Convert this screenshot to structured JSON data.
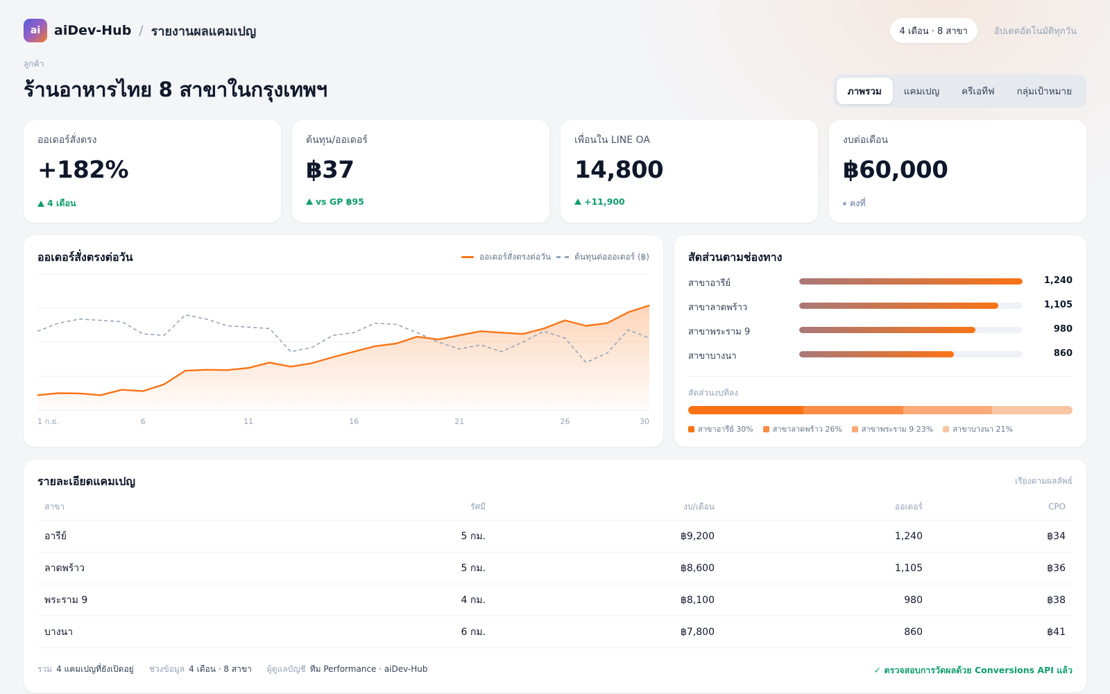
{
  "header": {
    "logo_text": "ai",
    "brand": "aiDev-Hub",
    "separator": "/",
    "breadcrumb": "รายงานผลแคมเปญ",
    "period_pill": "4 เดือน · 8 สาขา",
    "auto_update": "อัปเดตอัตโนมัติทุกวัน"
  },
  "client": {
    "label": "ลูกค้า",
    "name": "ร้านอาหารไทย 8 สาขาในกรุงเทพฯ"
  },
  "tabs": [
    {
      "label": "ภาพรวม",
      "active": true
    },
    {
      "label": "แคมเปญ",
      "active": false
    },
    {
      "label": "ครีเอทีฟ",
      "active": false
    },
    {
      "label": "กลุ่มเป้าหมาย",
      "active": false
    }
  ],
  "kpis": [
    {
      "label": "ออเดอร์สั่งตรง",
      "value": "+182%",
      "delta": "4 เดือน",
      "trend": "up"
    },
    {
      "label": "ต้นทุน/ออเดอร์",
      "value": "฿37",
      "delta": "vs GP ฿95",
      "trend": "up"
    },
    {
      "label": "เพื่อนใน LINE OA",
      "value": "14,800",
      "delta": "+11,900",
      "trend": "up"
    },
    {
      "label": "งบต่อเดือน",
      "value": "฿60,000",
      "delta": "คงที่",
      "trend": "neutral"
    }
  ],
  "daily_chart": {
    "title": "ออเดอร์สั่งตรงต่อวัน",
    "legend_orders": "ออเดอร์สั่งตรงต่อวัน",
    "legend_cost": "ต้นทุนต่อออเดอร์ (฿)",
    "colors": {
      "orders": "#f97316",
      "cost": "#94a3b8"
    }
  },
  "chart_data": {
    "type": "line",
    "x": [
      1,
      2,
      3,
      4,
      5,
      6,
      7,
      8,
      9,
      10,
      11,
      12,
      13,
      14,
      15,
      16,
      17,
      18,
      19,
      20,
      21,
      22,
      23,
      24,
      25,
      26,
      27,
      28,
      29,
      30
    ],
    "x_tick_labels": [
      "1 ก.ย.",
      "6",
      "11",
      "16",
      "21",
      "26",
      "30"
    ],
    "x_tick_positions": [
      1,
      6,
      11,
      16,
      21,
      26,
      30
    ],
    "xlim": [
      1,
      30
    ],
    "ylim": [
      0,
      100
    ],
    "grid": true,
    "legend_position": "top-right",
    "series": [
      {
        "name": "ออเดอร์สั่งตรงต่อวัน",
        "style": "solid-area",
        "values": [
          11,
          12.5,
          12.3,
          11,
          15,
          14,
          19,
          29,
          29.7,
          29.5,
          31,
          35,
          32,
          34.5,
          39,
          43,
          47,
          49,
          54,
          52,
          55,
          58,
          57,
          56,
          60,
          66,
          62,
          64,
          72,
          77
        ]
      },
      {
        "name": "ต้นทุนต่อออเดอร์ (฿)",
        "style": "dashed",
        "values": [
          58,
          64,
          67,
          66,
          65,
          56,
          55,
          70,
          67,
          62,
          61,
          60,
          43,
          46,
          55,
          57,
          64,
          63,
          57,
          50,
          45,
          48,
          43,
          50,
          58,
          53,
          35,
          42,
          59,
          53
        ]
      }
    ]
  },
  "channels": {
    "title": "สัดส่วนตามช่องทาง",
    "max": 1240,
    "items": [
      {
        "label": "สาขาอารีย์",
        "value": 1240,
        "display": "1,240"
      },
      {
        "label": "สาขาลาดพร้าว",
        "value": 1105,
        "display": "1,105"
      },
      {
        "label": "สาขาพระราม 9",
        "value": 980,
        "display": "980"
      },
      {
        "label": "สาขาบางนา",
        "value": 860,
        "display": "860"
      }
    ],
    "budget_label": "สัดส่วนงบที่ลง",
    "budget_share": [
      {
        "label": "สาขาอารีย์ 30%",
        "percent": 30,
        "color": "#f97316"
      },
      {
        "label": "สาขาลาดพร้าว 26%",
        "percent": 26,
        "color": "#fb8c45"
      },
      {
        "label": "สาขาพระราม 9 23%",
        "percent": 23,
        "color": "#fbab78"
      },
      {
        "label": "สาขาบางนา 21%",
        "percent": 21,
        "color": "#f7c7a4"
      }
    ]
  },
  "campaign_table": {
    "title": "รายละเอียดแคมเปญ",
    "sort_label": "เรียงตามผลลัพธ์",
    "columns": [
      "สาขา",
      "รัศมี",
      "งบ/เดือน",
      "ออเดอร์",
      "CPO"
    ],
    "rows": [
      [
        "อารีย์",
        "5 กม.",
        "฿9,200",
        "1,240",
        "฿34"
      ],
      [
        "ลาดพร้าว",
        "5 กม.",
        "฿8,600",
        "1,105",
        "฿36"
      ],
      [
        "พระราม 9",
        "4 กม.",
        "฿8,100",
        "980",
        "฿38"
      ],
      [
        "บางนา",
        "6 กม.",
        "฿7,800",
        "860",
        "฿41"
      ]
    ],
    "footer": {
      "total_label": "รวม",
      "total_value": "4 แคมเปญที่ยังเปิดอยู่",
      "range_label": "ช่วงข้อมูล",
      "range_value": "4 เดือน · 8 สาขา",
      "owner_label": "ผู้ดูแลบัญชี",
      "owner_value": "ทีม Performance · aiDev-Hub",
      "verified": "✓ ตรวจสอบการวัดผลด้วย Conversions API แล้ว"
    }
  }
}
